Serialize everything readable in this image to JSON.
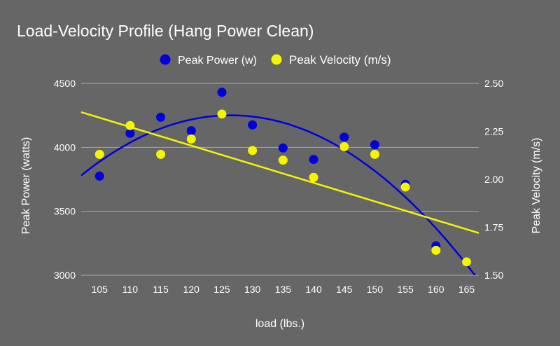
{
  "chart_data": {
    "type": "scatter",
    "title": "Load-Velocity Profile (Hang Power Clean)",
    "xlabel": "load (lbs.)",
    "ylabel_left": "Peak Power (watts)",
    "ylabel_right": "Peak Velocity (m/s)",
    "x_ticks": [
      "105",
      "110",
      "115",
      "120",
      "125",
      "130",
      "135",
      "140",
      "145",
      "150",
      "155",
      "160",
      "165"
    ],
    "y_left_ticks": [
      "3000",
      "3500",
      "4000",
      "4500"
    ],
    "y_right_ticks": [
      "1.50",
      "1.75",
      "2.00",
      "2.25",
      "2.50"
    ],
    "xlim": [
      102,
      167
    ],
    "ylim_left": [
      3000,
      4500
    ],
    "ylim_right": [
      1.5,
      2.5
    ],
    "grid": true,
    "legend_position": "top",
    "series": [
      {
        "name": "Peak Power (w)",
        "axis": "left",
        "color": "#0000dd",
        "x": [
          105,
          110,
          115,
          120,
          125,
          130,
          135,
          140,
          145,
          150,
          155,
          160,
          165
        ],
        "y": [
          3775,
          4110,
          4235,
          4130,
          4430,
          4175,
          3995,
          3905,
          4080,
          4020,
          3710,
          3230,
          3105
        ],
        "trendline": {
          "type": "polynomial",
          "degree": 2,
          "x": [
            102,
            126,
            167
          ],
          "y": [
            3780,
            4250,
            2960
          ]
        }
      },
      {
        "name": "Peak Velocity (m/s)",
        "axis": "right",
        "color": "#f5f500",
        "x": [
          105,
          110,
          115,
          120,
          125,
          130,
          135,
          140,
          145,
          150,
          155,
          160,
          165
        ],
        "y": [
          2.13,
          2.28,
          2.13,
          2.21,
          2.34,
          2.15,
          2.1,
          2.01,
          2.17,
          2.13,
          1.96,
          1.63,
          1.57
        ],
        "trendline": {
          "type": "linear",
          "x": [
            102,
            167
          ],
          "y": [
            2.35,
            1.72
          ]
        }
      }
    ]
  }
}
